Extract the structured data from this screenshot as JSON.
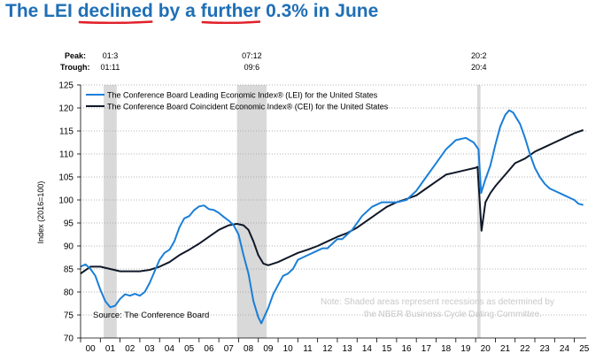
{
  "headline": {
    "part1": "The LEI ",
    "word1": "declined",
    "part2": " by a ",
    "word2": "further",
    "part3": " 0.3% in June"
  },
  "colors": {
    "headline": "#1f6fb6",
    "underline": "#e0202a",
    "lei_line": "#1a7fd8",
    "cei_line": "#101828",
    "recession": "#d9d9d9",
    "note": "#c8c8c8"
  },
  "chart_data": {
    "type": "line",
    "ylabel": "Index (2016=100)",
    "ylim": [
      70,
      125
    ],
    "yticks": [
      70,
      75,
      80,
      85,
      90,
      95,
      100,
      105,
      110,
      115,
      120,
      125
    ],
    "xlim": [
      2000,
      2025.6
    ],
    "xtick_labels": [
      "00",
      "01",
      "02",
      "03",
      "04",
      "05",
      "06",
      "07",
      "08",
      "09",
      "10",
      "11",
      "12",
      "13",
      "14",
      "15",
      "16",
      "17",
      "18",
      "19",
      "20",
      "21",
      "22",
      "23",
      "24",
      "25"
    ],
    "grid": true,
    "legend_position": "top-left",
    "peak_label": "Peak:",
    "trough_label": "Trough:",
    "recessions": [
      {
        "peak": "01:3",
        "trough": "01:11",
        "start": 2001.17,
        "end": 2001.83
      },
      {
        "peak": "07:12",
        "trough": "09:6",
        "start": 2007.92,
        "end": 2009.42
      },
      {
        "peak": "20:2",
        "trough": "20:4",
        "start": 2020.08,
        "end": 2020.25
      }
    ],
    "source": "Source: The Conference Board",
    "note_line1": "Note: Shaded areas represent recessions as determined by",
    "note_line2": "the NBER Business Cycle Dating Committee.",
    "series": [
      {
        "name": "The Conference Board Leading Economic Index® (LEI) for the United States",
        "points": [
          [
            2000.0,
            85.5
          ],
          [
            2000.25,
            86.0
          ],
          [
            2000.5,
            85.0
          ],
          [
            2000.75,
            83.5
          ],
          [
            2001.0,
            80.5
          ],
          [
            2001.25,
            78.0
          ],
          [
            2001.5,
            76.7
          ],
          [
            2001.75,
            77.0
          ],
          [
            2002.0,
            78.5
          ],
          [
            2002.25,
            79.5
          ],
          [
            2002.5,
            79.2
          ],
          [
            2002.75,
            79.6
          ],
          [
            2003.0,
            79.2
          ],
          [
            2003.25,
            80.0
          ],
          [
            2003.5,
            82.0
          ],
          [
            2003.75,
            84.5
          ],
          [
            2004.0,
            87.0
          ],
          [
            2004.25,
            88.5
          ],
          [
            2004.5,
            89.2
          ],
          [
            2004.75,
            91.0
          ],
          [
            2005.0,
            94.0
          ],
          [
            2005.25,
            96.0
          ],
          [
            2005.5,
            96.5
          ],
          [
            2005.75,
            97.8
          ],
          [
            2006.0,
            98.6
          ],
          [
            2006.25,
            98.8
          ],
          [
            2006.5,
            98.0
          ],
          [
            2006.75,
            97.8
          ],
          [
            2007.0,
            97.2
          ],
          [
            2007.25,
            96.3
          ],
          [
            2007.5,
            95.5
          ],
          [
            2007.75,
            94.5
          ],
          [
            2008.0,
            92.5
          ],
          [
            2008.25,
            88.0
          ],
          [
            2008.5,
            84.0
          ],
          [
            2008.75,
            78.0
          ],
          [
            2009.0,
            74.5
          ],
          [
            2009.15,
            73.2
          ],
          [
            2009.5,
            76.5
          ],
          [
            2009.75,
            79.5
          ],
          [
            2010.0,
            81.5
          ],
          [
            2010.25,
            83.5
          ],
          [
            2010.5,
            84.0
          ],
          [
            2010.75,
            85.0
          ],
          [
            2011.0,
            87.0
          ],
          [
            2011.25,
            87.5
          ],
          [
            2011.5,
            88.0
          ],
          [
            2011.75,
            88.5
          ],
          [
            2012.0,
            89.0
          ],
          [
            2012.25,
            89.5
          ],
          [
            2012.5,
            89.5
          ],
          [
            2012.75,
            90.5
          ],
          [
            2013.0,
            91.5
          ],
          [
            2013.25,
            91.5
          ],
          [
            2013.5,
            92.5
          ],
          [
            2013.75,
            93.5
          ],
          [
            2014.0,
            95.0
          ],
          [
            2014.25,
            96.5
          ],
          [
            2014.5,
            97.5
          ],
          [
            2014.75,
            98.5
          ],
          [
            2015.0,
            99.0
          ],
          [
            2015.25,
            99.5
          ],
          [
            2015.5,
            99.5
          ],
          [
            2015.75,
            99.5
          ],
          [
            2016.0,
            99.5
          ],
          [
            2016.5,
            100.0
          ],
          [
            2017.0,
            102.0
          ],
          [
            2017.5,
            105.0
          ],
          [
            2018.0,
            108.0
          ],
          [
            2018.5,
            111.0
          ],
          [
            2019.0,
            113.0
          ],
          [
            2019.5,
            113.5
          ],
          [
            2019.9,
            112.5
          ],
          [
            2020.15,
            111.0
          ],
          [
            2020.28,
            101.5
          ],
          [
            2020.5,
            104.5
          ],
          [
            2020.75,
            107.5
          ],
          [
            2021.0,
            112.0
          ],
          [
            2021.25,
            116.0
          ],
          [
            2021.5,
            118.5
          ],
          [
            2021.7,
            119.5
          ],
          [
            2021.9,
            119.0
          ],
          [
            2022.25,
            116.5
          ],
          [
            2022.5,
            113.5
          ],
          [
            2022.75,
            110.0
          ],
          [
            2023.0,
            107.0
          ],
          [
            2023.25,
            105.0
          ],
          [
            2023.5,
            103.5
          ],
          [
            2023.75,
            102.5
          ],
          [
            2024.0,
            102.0
          ],
          [
            2024.25,
            101.5
          ],
          [
            2024.5,
            101.0
          ],
          [
            2024.75,
            100.5
          ],
          [
            2025.0,
            100.0
          ],
          [
            2025.2,
            99.2
          ],
          [
            2025.45,
            98.9
          ]
        ]
      },
      {
        "name": "The Conference Board Coincident Economic Index® (CEI) for the United States",
        "points": [
          [
            2000.0,
            84.0
          ],
          [
            2000.5,
            85.5
          ],
          [
            2001.0,
            85.5
          ],
          [
            2001.5,
            85.0
          ],
          [
            2002.0,
            84.5
          ],
          [
            2002.5,
            84.5
          ],
          [
            2003.0,
            84.5
          ],
          [
            2003.5,
            84.8
          ],
          [
            2004.0,
            85.5
          ],
          [
            2004.5,
            86.5
          ],
          [
            2005.0,
            88.0
          ],
          [
            2005.5,
            89.2
          ],
          [
            2006.0,
            90.5
          ],
          [
            2006.5,
            92.0
          ],
          [
            2007.0,
            93.5
          ],
          [
            2007.5,
            94.5
          ],
          [
            2007.92,
            94.8
          ],
          [
            2008.25,
            94.5
          ],
          [
            2008.5,
            93.5
          ],
          [
            2008.75,
            91.0
          ],
          [
            2009.0,
            88.0
          ],
          [
            2009.25,
            86.2
          ],
          [
            2009.5,
            85.8
          ],
          [
            2010.0,
            86.5
          ],
          [
            2010.5,
            87.5
          ],
          [
            2011.0,
            88.5
          ],
          [
            2011.5,
            89.2
          ],
          [
            2012.0,
            90.0
          ],
          [
            2012.5,
            91.0
          ],
          [
            2013.0,
            92.0
          ],
          [
            2013.5,
            92.8
          ],
          [
            2014.0,
            94.0
          ],
          [
            2014.5,
            95.5
          ],
          [
            2015.0,
            97.0
          ],
          [
            2015.5,
            98.5
          ],
          [
            2016.0,
            99.5
          ],
          [
            2016.5,
            100.2
          ],
          [
            2017.0,
            101.0
          ],
          [
            2017.5,
            102.5
          ],
          [
            2018.0,
            104.0
          ],
          [
            2018.5,
            105.5
          ],
          [
            2019.0,
            106.0
          ],
          [
            2019.5,
            106.5
          ],
          [
            2020.0,
            107.0
          ],
          [
            2020.1,
            107.2
          ],
          [
            2020.3,
            93.3
          ],
          [
            2020.5,
            99.5
          ],
          [
            2020.75,
            101.5
          ],
          [
            2021.0,
            103.0
          ],
          [
            2021.5,
            105.5
          ],
          [
            2022.0,
            108.0
          ],
          [
            2022.5,
            109.0
          ],
          [
            2023.0,
            110.5
          ],
          [
            2023.5,
            111.5
          ],
          [
            2024.0,
            112.5
          ],
          [
            2024.5,
            113.5
          ],
          [
            2025.0,
            114.5
          ],
          [
            2025.45,
            115.2
          ]
        ]
      }
    ]
  }
}
